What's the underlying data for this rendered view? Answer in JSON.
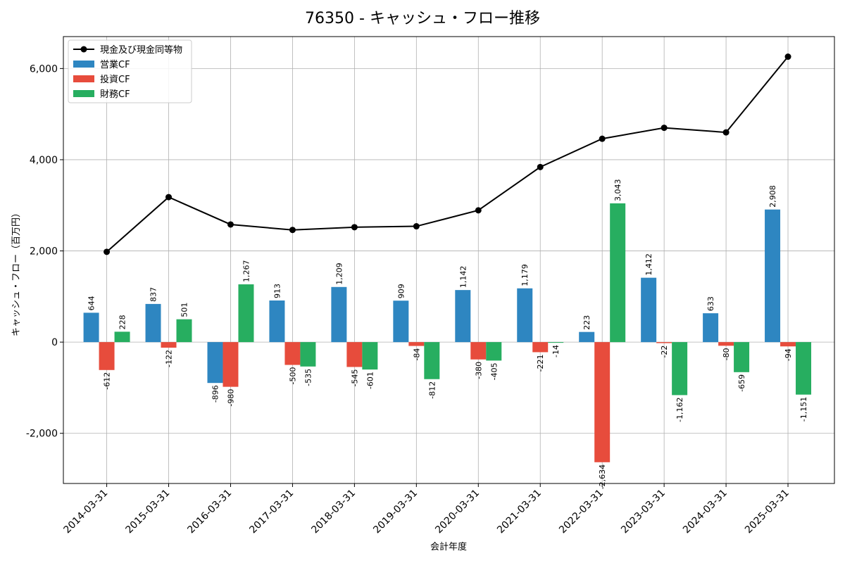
{
  "chart_data": {
    "type": "bar",
    "title": "76350 - キャッシュ・フロー推移",
    "xlabel": "会計年度",
    "ylabel": "キャッシュ・フロー（百万円）",
    "categories": [
      "2014-03-31",
      "2015-03-31",
      "2016-03-31",
      "2017-03-31",
      "2018-03-31",
      "2019-03-31",
      "2020-03-31",
      "2021-03-31",
      "2022-03-31",
      "2023-03-31",
      "2024-03-31",
      "2025-03-31"
    ],
    "ylim": [
      -3100,
      6700
    ],
    "yticks": [
      -2000,
      0,
      2000,
      4000,
      6000
    ],
    "ytick_labels": [
      "-2,000",
      "0",
      "2,000",
      "4,000",
      "6,000"
    ],
    "grid": true,
    "legend_position": "top-left",
    "series": [
      {
        "name": "現金及び現金同等物",
        "kind": "line",
        "color": "#000000",
        "values": [
          1980,
          3180,
          2580,
          2460,
          2520,
          2540,
          2890,
          3840,
          4460,
          4700,
          4600,
          6260
        ]
      },
      {
        "name": "営業CF",
        "kind": "bar",
        "color": "#2e86c1",
        "values": [
          644,
          837,
          -896,
          913,
          1209,
          909,
          1142,
          1179,
          223,
          1412,
          633,
          2908
        ],
        "labels": [
          "644",
          "837",
          "-896",
          "913",
          "1,209",
          "909",
          "1,142",
          "1,179",
          "223",
          "1,412",
          "633",
          "2,908"
        ]
      },
      {
        "name": "投資CF",
        "kind": "bar",
        "color": "#e74c3c",
        "values": [
          -612,
          -122,
          -980,
          -500,
          -545,
          -84,
          -380,
          -221,
          -2634,
          -22,
          -80,
          -94
        ],
        "labels": [
          "-612",
          "-122",
          "-980",
          "-500",
          "-545",
          "-84",
          "-380",
          "-221",
          "-2,634",
          "-22",
          "-80",
          "-94"
        ]
      },
      {
        "name": "財務CF",
        "kind": "bar",
        "color": "#27ae60",
        "values": [
          228,
          501,
          1267,
          -535,
          -601,
          -812,
          -405,
          -14,
          3043,
          -1162,
          -659,
          -1151
        ],
        "labels": [
          "228",
          "501",
          "1,267",
          "-535",
          "-601",
          "-812",
          "-405",
          "-14",
          "3,043",
          "-1,162",
          "-659",
          "-1,151"
        ]
      }
    ]
  }
}
